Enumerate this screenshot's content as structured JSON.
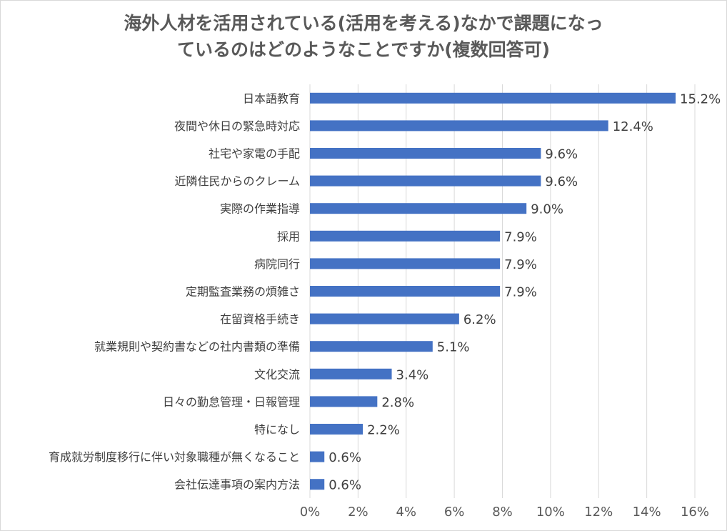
{
  "chart_data": {
    "type": "bar",
    "orientation": "horizontal",
    "title_lines": [
      "海外人材を活用されている(活用を考える)なかで課題になっ",
      "ているのはどのようなことですか(複数回答可)"
    ],
    "categories": [
      "日本語教育",
      "夜間や休日の緊急時対応",
      "社宅や家電の手配",
      "近隣住民からのクレーム",
      "実際の作業指導",
      "採用",
      "病院同行",
      "定期監査業務の煩雑さ",
      "在留資格手続き",
      "就業規則や契約書などの社内書類の準備",
      "文化交流",
      "日々の勤怠管理・日報管理",
      "特になし",
      "育成就労制度移行に伴い対象職種が無くなること",
      "会社伝達事項の案内方法"
    ],
    "values": [
      15.2,
      12.4,
      9.6,
      9.6,
      9.0,
      7.9,
      7.9,
      7.9,
      6.2,
      5.1,
      3.4,
      2.8,
      2.2,
      0.6,
      0.6
    ],
    "value_labels": [
      "15.2%",
      "12.4%",
      "9.6%",
      "9.6%",
      "9.0%",
      "7.9%",
      "7.9%",
      "7.9%",
      "6.2%",
      "5.1%",
      "3.4%",
      "2.8%",
      "2.2%",
      "0.6%",
      "0.6%"
    ],
    "xlim": [
      0,
      16
    ],
    "xticks": [
      0,
      2,
      4,
      6,
      8,
      10,
      12,
      14,
      16
    ],
    "xtick_labels": [
      "0%",
      "2%",
      "4%",
      "6%",
      "8%",
      "10%",
      "12%",
      "14%",
      "16%"
    ],
    "grid": true,
    "bar_color": "#4472c4",
    "legend": "none"
  }
}
